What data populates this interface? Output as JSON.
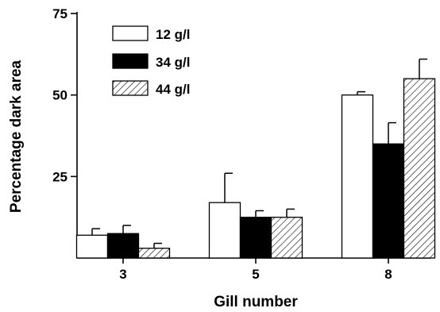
{
  "chart_data": {
    "type": "bar",
    "title": "",
    "xlabel": "Gill number",
    "ylabel": "Percentage dark area",
    "categories": [
      "3",
      "5",
      "8"
    ],
    "ylim": [
      0,
      75
    ],
    "yticks": [
      25,
      50,
      75
    ],
    "ytick_labels": [
      "25",
      "50",
      "75"
    ],
    "grid": false,
    "legend_position": "top-left",
    "series": [
      {
        "name": "12 g/l",
        "fill": "open",
        "color": "#ffffff",
        "values": [
          7,
          17,
          50
        ],
        "errors": [
          2,
          9,
          1
        ]
      },
      {
        "name": "34 g/l",
        "fill": "solid",
        "color": "#000000",
        "values": [
          7.5,
          12.5,
          35
        ],
        "errors": [
          2.5,
          2,
          6.5
        ]
      },
      {
        "name": "44 g/l",
        "fill": "hatched",
        "color": "#ffffff",
        "values": [
          3,
          12.5,
          55
        ],
        "errors": [
          1.5,
          2.5,
          6
        ]
      }
    ]
  }
}
